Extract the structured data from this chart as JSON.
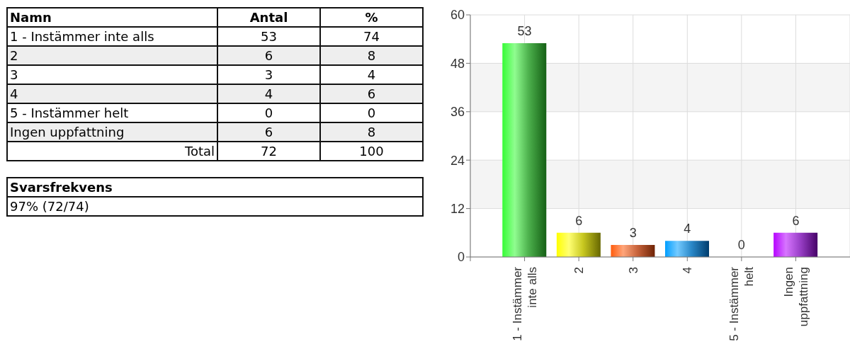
{
  "chart_data": [
    {
      "type": "heatmap",
      "ylabel": "Namn",
      "categories": [
        "Antal",
        "%"
      ],
      "y_categories": [
        "1 - Instämmer inte alls",
        "2",
        "3",
        "4",
        "5 - Instämmer helt",
        "Ingen uppfattning"
      ],
      "cells": [
        [
          53,
          74
        ],
        [
          6,
          8
        ],
        [
          3,
          4
        ],
        [
          4,
          6
        ],
        [
          0,
          0
        ],
        [
          6,
          8
        ]
      ],
      "data_labels": true,
      "totals": [
        "72",
        "100"
      ],
      "annotations": [
        "Total"
      ]
    },
    {
      "type": "other",
      "title": "Svarsfrekvens",
      "annotations": [
        "97% (72/74)"
      ]
    },
    {
      "type": "bar",
      "categories": [
        "1 - Instämmer inte alls",
        "2",
        "3",
        "4",
        "5 - Instämmer helt",
        "Ingen uppfattning"
      ],
      "values": [
        53,
        6,
        3,
        4,
        0,
        6
      ],
      "colors": [
        "#4cb04c",
        "#c8c820",
        "#c8643c",
        "#2a88c8",
        null,
        "#9a40c8"
      ],
      "ylim": [
        0,
        60
      ],
      "yticks": [
        0,
        12,
        24,
        36,
        48,
        60
      ],
      "grid": true,
      "data_labels": true
    }
  ]
}
